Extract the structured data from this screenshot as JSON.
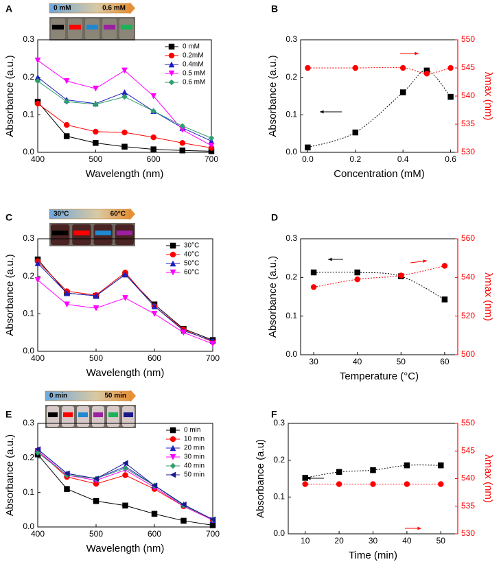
{
  "chart_data": [
    {
      "type": "line",
      "panel": "A",
      "xlabel": "Wavelength (nm)",
      "ylabel": "Absorbance (a.u.)",
      "annotations": [
        "0 mM",
        "0.6 mM"
      ],
      "x": [
        400,
        450,
        500,
        550,
        600,
        650,
        700
      ],
      "xlim": [
        400,
        700
      ],
      "xticks": [
        400,
        500,
        600,
        700
      ],
      "ylim": [
        0,
        0.3
      ],
      "yticks": [
        {
          "value": 0,
          "label": "0.0"
        },
        0.1,
        0.2,
        0.3
      ],
      "legend": "upper right",
      "series": [
        {
          "name": "0 mM",
          "color": "#000000",
          "marker": "square",
          "values": [
            0.135,
            0.043,
            0.025,
            0.015,
            0.008,
            0.005,
            0.003
          ]
        },
        {
          "name": "0.2mM",
          "color": "#ff0000",
          "marker": "circle",
          "values": [
            0.13,
            0.073,
            0.055,
            0.053,
            0.04,
            0.025,
            0.012
          ]
        },
        {
          "name": "0.4mM",
          "color": "#1f1fbf",
          "marker": "triangle-up",
          "values": [
            0.2,
            0.14,
            0.13,
            0.16,
            0.11,
            0.065,
            0.03
          ]
        },
        {
          "name": "0.5 mM",
          "color": "#ff00ff",
          "marker": "triangle-down",
          "values": [
            0.245,
            0.19,
            0.17,
            0.218,
            0.15,
            0.06,
            0.018
          ]
        },
        {
          "name": "0.6 mM",
          "color": "#2e9e6e",
          "marker": "diamond",
          "values": [
            0.19,
            0.135,
            0.128,
            0.148,
            0.11,
            0.07,
            0.038
          ]
        }
      ]
    },
    {
      "type": "scatter",
      "panel": "B",
      "xlabel": "Concentration (mM)",
      "ylabel": "Absorbance (a.u.)",
      "y2label": "λmax (nm)",
      "x": [
        0,
        0.2,
        0.4,
        0.5,
        0.6
      ],
      "xlim": [
        -0.03,
        0.63
      ],
      "xticks": [
        {
          "value": 0,
          "label": "0.0"
        },
        0.2,
        0.4,
        0.6
      ],
      "ylim": [
        0,
        0.3
      ],
      "yticks": [
        {
          "value": 0,
          "label": "0.0"
        },
        0.1,
        0.2,
        0.3
      ],
      "y2lim": [
        530,
        550
      ],
      "y2ticks": [
        530,
        535,
        540,
        545,
        550
      ],
      "series": [
        {
          "color": "#000000",
          "marker": "square",
          "values": [
            0.013,
            0.053,
            0.16,
            0.218,
            0.148
          ]
        },
        {
          "color": "#ff0000",
          "marker": "circle",
          "axis": "y2",
          "values": [
            545,
            545,
            545,
            544,
            545
          ]
        }
      ]
    },
    {
      "type": "line",
      "panel": "C",
      "xlabel": "Wavelength (nm)",
      "ylabel": "Absorbance (a.u.)",
      "annotations": [
        "30°C",
        "60°C"
      ],
      "x": [
        400,
        450,
        500,
        550,
        600,
        650,
        700
      ],
      "xlim": [
        400,
        700
      ],
      "xticks": [
        400,
        500,
        600,
        700
      ],
      "ylim": [
        0,
        0.3
      ],
      "yticks": [
        {
          "value": 0,
          "label": "0.0"
        },
        0.1,
        0.2,
        0.3
      ],
      "legend": "upper right",
      "series": [
        {
          "name": "30°C",
          "color": "#000000",
          "marker": "square",
          "values": [
            0.245,
            0.155,
            0.148,
            0.205,
            0.125,
            0.06,
            0.03
          ]
        },
        {
          "name": "40°C",
          "color": "#ff0000",
          "marker": "circle",
          "values": [
            0.24,
            0.16,
            0.15,
            0.21,
            0.12,
            0.058,
            0.025
          ]
        },
        {
          "name": "50°C",
          "color": "#1f1fbf",
          "marker": "triangle-up",
          "values": [
            0.235,
            0.155,
            0.148,
            0.205,
            0.12,
            0.055,
            0.028
          ]
        },
        {
          "name": "60°C",
          "color": "#ff00ff",
          "marker": "triangle-down",
          "values": [
            0.19,
            0.125,
            0.115,
            0.142,
            0.1,
            0.05,
            0.02
          ]
        }
      ]
    },
    {
      "type": "scatter",
      "panel": "D",
      "xlabel": "Temperature (°C)",
      "ylabel": "Absorbance (a.u.)",
      "y2label": "λmax (nm)",
      "x": [
        30,
        40,
        50,
        60
      ],
      "xlim": [
        27,
        63
      ],
      "xticks": [
        30,
        40,
        50,
        60
      ],
      "ylim": [
        0,
        0.3
      ],
      "yticks": [
        {
          "value": 0,
          "label": "0.0"
        },
        0.1,
        0.2,
        0.3
      ],
      "y2lim": [
        500,
        560
      ],
      "y2ticks": [
        500,
        520,
        540,
        560
      ],
      "series": [
        {
          "color": "#000000",
          "marker": "square",
          "values": [
            0.213,
            0.213,
            0.203,
            0.143
          ]
        },
        {
          "color": "#ff0000",
          "marker": "circle",
          "axis": "y2",
          "values": [
            535,
            539,
            541,
            546
          ]
        }
      ]
    },
    {
      "type": "line",
      "panel": "E",
      "xlabel": "Wavelength (nm)",
      "ylabel": "Absorbance (a.u.)",
      "annotations": [
        "0 min",
        "50 min"
      ],
      "x": [
        400,
        450,
        500,
        550,
        600,
        650,
        700
      ],
      "xlim": [
        400,
        700
      ],
      "xticks": [
        400,
        500,
        600,
        700
      ],
      "ylim": [
        0,
        0.3
      ],
      "yticks": [
        {
          "value": 0,
          "label": "0.0"
        },
        0.1,
        0.2,
        0.3
      ],
      "legend": "upper right",
      "series": [
        {
          "name": "0 min",
          "color": "#000000",
          "marker": "square",
          "values": [
            0.21,
            0.11,
            0.075,
            0.062,
            0.038,
            0.018,
            0.005
          ]
        },
        {
          "name": "10  min",
          "color": "#ff0000",
          "marker": "circle",
          "values": [
            0.22,
            0.145,
            0.125,
            0.15,
            0.11,
            0.06,
            0.02
          ]
        },
        {
          "name": "20 min",
          "color": "#1f1fbf",
          "marker": "triangle-up",
          "values": [
            0.225,
            0.155,
            0.14,
            0.175,
            0.12,
            0.065,
            0.02
          ]
        },
        {
          "name": "30 min",
          "color": "#ff00ff",
          "marker": "triangle-down",
          "values": [
            0.22,
            0.15,
            0.135,
            0.165,
            0.115,
            0.06,
            0.02
          ]
        },
        {
          "name": "40 min",
          "color": "#2e9e6e",
          "marker": "diamond",
          "values": [
            0.215,
            0.15,
            0.14,
            0.17,
            0.12,
            0.062,
            0.022
          ]
        },
        {
          "name": "50 min",
          "color": "#1a1a8c",
          "marker": "triangle-left",
          "values": [
            0.225,
            0.155,
            0.14,
            0.185,
            0.12,
            0.065,
            0.022
          ]
        }
      ]
    },
    {
      "type": "scatter",
      "panel": "F",
      "xlabel": "Time (min)",
      "ylabel": "Absorbance (a.u)",
      "y2label": "λmax (nm)",
      "x": [
        10,
        20,
        30,
        40,
        50
      ],
      "xlim": [
        5,
        55
      ],
      "xticks": [
        10,
        20,
        30,
        40,
        50
      ],
      "ylim": [
        0,
        0.3
      ],
      "yticks": [
        {
          "value": 0,
          "label": "0.0"
        },
        0.1,
        0.2,
        0.3
      ],
      "y2lim": [
        530,
        550
      ],
      "y2ticks": [
        530,
        535,
        540,
        545,
        550
      ],
      "series": [
        {
          "color": "#000000",
          "marker": "square",
          "values": [
            0.152,
            0.168,
            0.173,
            0.186,
            0.186
          ]
        },
        {
          "color": "#ff0000",
          "marker": "circle",
          "axis": "y2",
          "values": [
            539,
            539,
            539,
            539,
            539
          ]
        }
      ]
    }
  ]
}
